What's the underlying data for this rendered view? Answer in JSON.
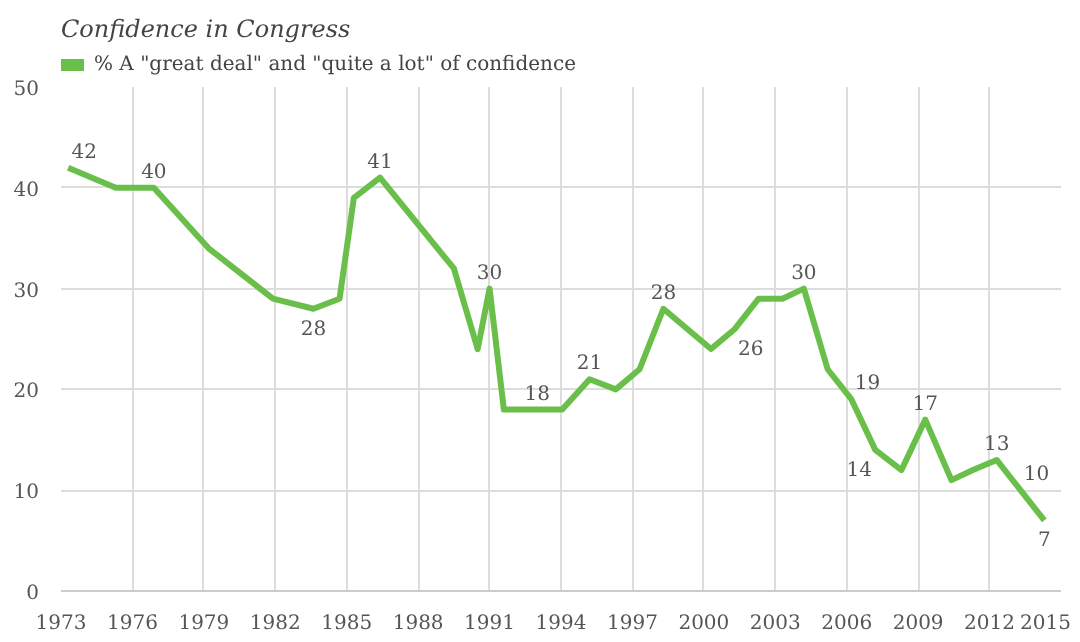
{
  "chart_data": {
    "type": "line",
    "title": "Confidence in Congress",
    "x": [
      1973.3,
      1975.3,
      1976.9,
      1979.2,
      1981.9,
      1983.6,
      1984.7,
      1985.3,
      1986.4,
      1989.5,
      1990.5,
      1991.0,
      1991.6,
      1993.0,
      1994.05,
      1995.2,
      1996.3,
      1997.3,
      1998.3,
      2000.3,
      2001.3,
      2002.3,
      2003.3,
      2004.2,
      2005.2,
      2006.2,
      2007.2,
      2008.3,
      2009.3,
      2010.4,
      2011.3,
      2012.3,
      2013.3,
      2014.3
    ],
    "series": [
      {
        "name": "% A \"great deal\" and \"quite a lot\" of confidence",
        "color": "#6abf4b",
        "values": [
          42,
          40,
          40,
          34,
          29,
          28,
          29,
          39,
          41,
          32,
          24,
          30,
          18,
          18,
          18,
          21,
          20,
          22,
          28,
          24,
          26,
          29,
          29,
          30,
          22,
          19,
          14,
          12,
          17,
          11,
          12,
          13,
          10,
          7
        ]
      }
    ],
    "xlim": [
      1973,
      2015
    ],
    "ylim": [
      0,
      50
    ],
    "xticks": [
      1973,
      1976,
      1979,
      1982,
      1985,
      1988,
      1991,
      1994,
      1997,
      2000,
      2003,
      2006,
      2009,
      2012,
      2015
    ],
    "yticks": [
      0,
      10,
      20,
      30,
      40,
      50
    ],
    "grid": true,
    "legend": "top left",
    "marker": "none",
    "line_style": "solid",
    "annotations": [
      {
        "text": "42",
        "x": 1973.3,
        "y": 42
      },
      {
        "text": "40",
        "x": 1976.9,
        "y": 40
      },
      {
        "text": "28",
        "x": 1983.6,
        "y": 28
      },
      {
        "text": "41",
        "x": 1986.4,
        "y": 41
      },
      {
        "text": "30",
        "x": 1991.0,
        "y": 30
      },
      {
        "text": "18",
        "x": 1993.0,
        "y": 18
      },
      {
        "text": "21",
        "x": 1995.2,
        "y": 21
      },
      {
        "text": "28",
        "x": 1998.3,
        "y": 28
      },
      {
        "text": "26",
        "x": 2001.3,
        "y": 26
      },
      {
        "text": "30",
        "x": 2004.2,
        "y": 30
      },
      {
        "text": "19",
        "x": 2006.2,
        "y": 19
      },
      {
        "text": "14",
        "x": 2007.2,
        "y": 14
      },
      {
        "text": "17",
        "x": 2009.3,
        "y": 17
      },
      {
        "text": "13",
        "x": 2012.3,
        "y": 13
      },
      {
        "text": "10",
        "x": 2013.3,
        "y": 10
      },
      {
        "text": "7",
        "x": 2014.3,
        "y": 7
      }
    ]
  }
}
